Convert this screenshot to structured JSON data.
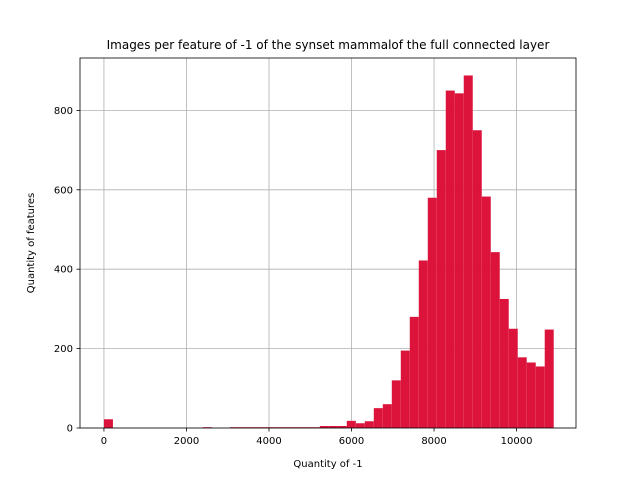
{
  "chart_data": {
    "type": "bar",
    "title": "Images per feature of -1 of the synset mammalof the full connected layer",
    "xlabel": "Quantity of -1",
    "ylabel": "Quantity of features",
    "xlim": [
      -580,
      11440
    ],
    "ylim": [
      0,
      932
    ],
    "xticks": [
      0,
      2000,
      4000,
      6000,
      8000,
      10000
    ],
    "yticks": [
      0,
      200,
      400,
      600,
      800
    ],
    "grid": true,
    "bar_color": "#dc143c",
    "bin_width": 218,
    "bins_left": [
      0,
      218,
      436,
      654,
      872,
      1090,
      1308,
      1526,
      1744,
      1962,
      2180,
      2398,
      2616,
      2834,
      3052,
      3270,
      3488,
      3706,
      3924,
      4142,
      4360,
      4578,
      4796,
      5014,
      5232,
      5450,
      5668,
      5886,
      6104,
      6322,
      6540,
      6758,
      6976,
      7194,
      7412,
      7630,
      7848,
      8066,
      8284,
      8502,
      8720,
      8938,
      9156,
      9374,
      9592,
      9810,
      10028,
      10246,
      10464,
      10682
    ],
    "values": [
      22,
      0,
      0,
      0,
      0,
      0,
      0,
      0,
      0,
      0,
      0,
      2,
      0,
      0,
      2,
      2,
      2,
      2,
      2,
      2,
      2,
      2,
      2,
      2,
      5,
      5,
      5,
      18,
      12,
      17,
      50,
      60,
      120,
      195,
      280,
      422,
      580,
      700,
      850,
      843,
      888,
      750,
      583,
      443,
      325,
      250,
      178,
      165,
      155,
      248
    ]
  }
}
